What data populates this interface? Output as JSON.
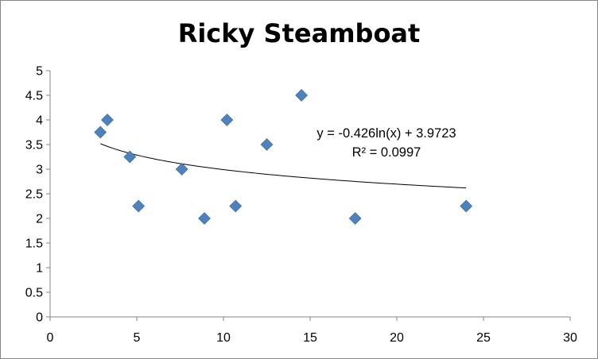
{
  "chart_data": {
    "type": "scatter",
    "title": "Ricky Steamboat",
    "xlabel": "",
    "ylabel": "",
    "xlim": [
      0,
      30
    ],
    "ylim": [
      0,
      5
    ],
    "x_ticks": [
      "0",
      "5",
      "10",
      "15",
      "20",
      "25",
      "30"
    ],
    "y_ticks": [
      "0",
      "0.5",
      "1",
      "1.5",
      "2",
      "2.5",
      "3",
      "3.5",
      "4",
      "4.5",
      "5"
    ],
    "grid": false,
    "legend": "none",
    "marker_color": "#4F81BD",
    "points": [
      {
        "x": 2.9,
        "y": 3.75
      },
      {
        "x": 3.3,
        "y": 4.0
      },
      {
        "x": 4.6,
        "y": 3.25
      },
      {
        "x": 5.1,
        "y": 2.25
      },
      {
        "x": 7.6,
        "y": 3.0
      },
      {
        "x": 8.9,
        "y": 2.0
      },
      {
        "x": 10.2,
        "y": 4.0
      },
      {
        "x": 10.7,
        "y": 2.25
      },
      {
        "x": 12.5,
        "y": 3.5
      },
      {
        "x": 14.5,
        "y": 4.5
      },
      {
        "x": 17.6,
        "y": 2.0
      },
      {
        "x": 24.0,
        "y": 2.25
      }
    ],
    "trendline": {
      "type": "logarithmic",
      "a": -0.426,
      "b": 3.9723,
      "x_range": [
        2.9,
        24.0
      ],
      "equation": "y = -0.426ln(x) + 3.9723",
      "r_squared": "R² = 0.0997"
    }
  }
}
